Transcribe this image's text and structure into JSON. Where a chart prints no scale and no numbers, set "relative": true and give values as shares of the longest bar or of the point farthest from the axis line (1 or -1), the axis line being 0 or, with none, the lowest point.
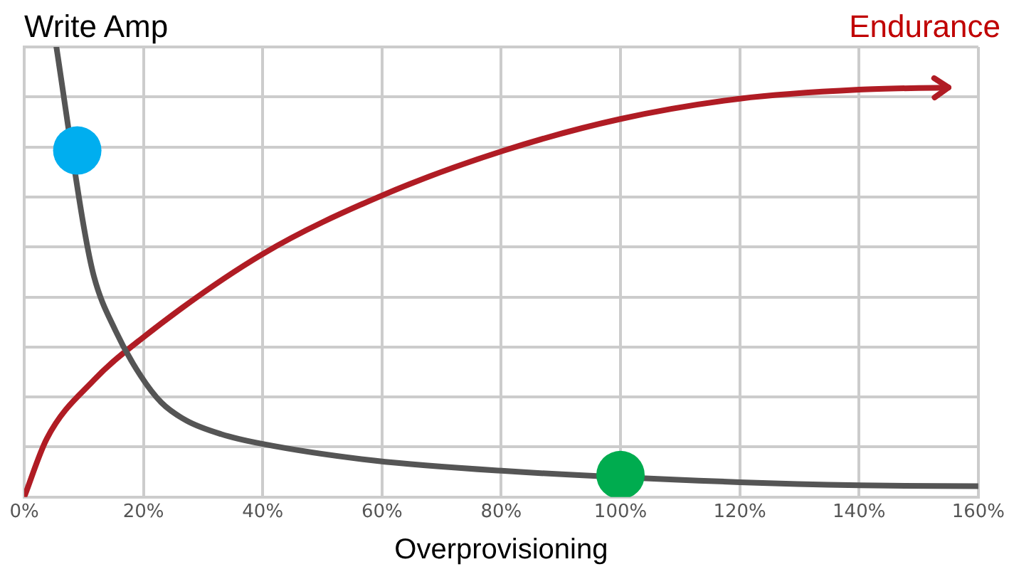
{
  "chart_data": {
    "type": "line",
    "relative": true,
    "xlabel": "Overprovisioning",
    "xlim": [
      0,
      160
    ],
    "xticks": [
      {
        "value": 0,
        "label": "0%"
      },
      {
        "value": 20,
        "label": "20%"
      },
      {
        "value": 40,
        "label": "40%"
      },
      {
        "value": 60,
        "label": "60%"
      },
      {
        "value": 80,
        "label": "80%"
      },
      {
        "value": 100,
        "label": "100%"
      },
      {
        "value": 120,
        "label": "120%"
      },
      {
        "value": 140,
        "label": "140%"
      },
      {
        "value": 160,
        "label": "160%"
      }
    ],
    "grid": true,
    "legend": false,
    "line_style": "solid",
    "series": [
      {
        "name": "Write Amp",
        "marker": "none",
        "color": "#555555",
        "x": [
          5.4,
          10,
          11.7,
          15.3,
          19.5,
          23,
          27.2,
          33,
          40,
          58.7,
          80.5,
          100,
          120,
          140,
          160
        ],
        "values": [
          1.0,
          0.6,
          0.49,
          0.37,
          0.27,
          0.21,
          0.17,
          0.14,
          0.118,
          0.081,
          0.058,
          null,
          0.033,
          0.026,
          0.024
        ]
      },
      {
        "name": "Endurance",
        "marker": "none",
        "color": "#b01c24",
        "x": [
          0,
          3.8,
          11.7,
          19.5,
          40,
          60,
          80.5,
          100,
          120,
          140,
          155
        ],
        "values": [
          0,
          0.13,
          0.26,
          0.35,
          0.54,
          0.67,
          0.77,
          0.84,
          0.885,
          0.905,
          0.91
        ]
      },
      {
        "type": "scatter",
        "marker": "circle",
        "color": "#00aeef",
        "x": [
          8.9
        ],
        "values": [
          0.77
        ]
      },
      {
        "type": "scatter",
        "marker": "circle",
        "color": "#00ac4f",
        "x": [
          100
        ],
        "values": [
          0.049
        ]
      }
    ]
  }
}
